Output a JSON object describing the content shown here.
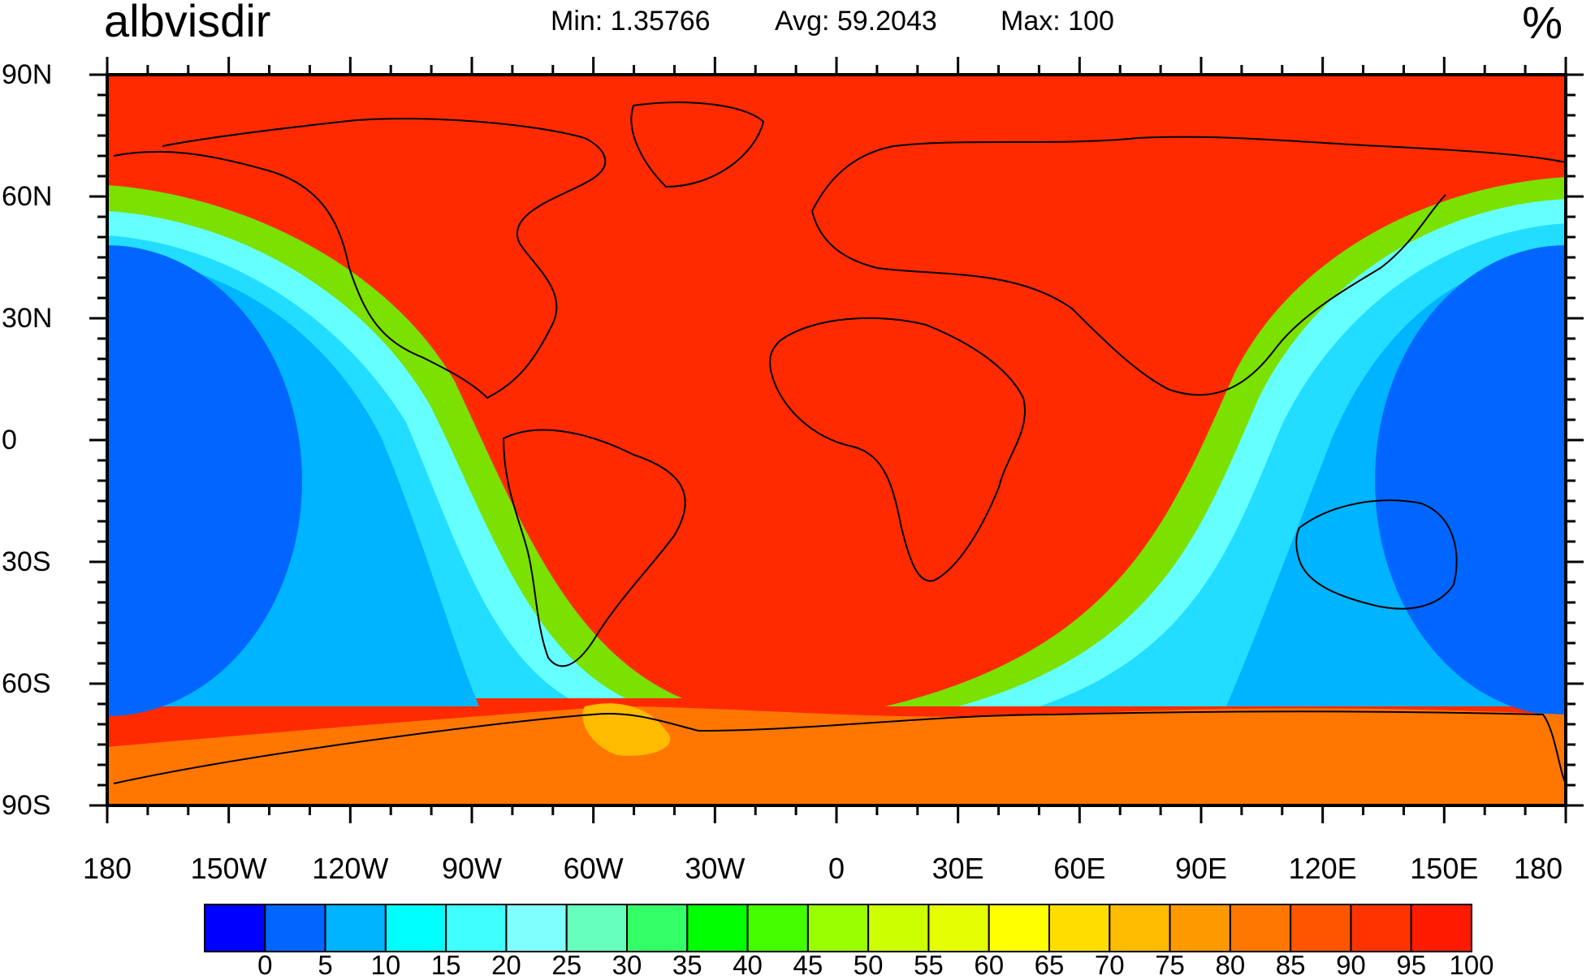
{
  "header": {
    "variable": "albvisdir",
    "min_text": "Min: 1.35766",
    "avg_text": "Avg: 59.2043",
    "max_text": "Max: 100",
    "units": "%"
  },
  "map": {
    "projection": "cylindrical-equidistant",
    "lon_range": [
      -180,
      180
    ],
    "lat_range": [
      -90,
      90
    ],
    "lat_ticks": [
      {
        "value": 90,
        "label": "90N"
      },
      {
        "value": 60,
        "label": "60N"
      },
      {
        "value": 30,
        "label": "30N"
      },
      {
        "value": 0,
        "label": "0"
      },
      {
        "value": -30,
        "label": "30S"
      },
      {
        "value": -60,
        "label": "60S"
      },
      {
        "value": -90,
        "label": "90S"
      }
    ],
    "lon_ticks": [
      {
        "value": -180,
        "label": "180"
      },
      {
        "value": -150,
        "label": "150W"
      },
      {
        "value": -120,
        "label": "120W"
      },
      {
        "value": -90,
        "label": "90W"
      },
      {
        "value": -60,
        "label": "60W"
      },
      {
        "value": -30,
        "label": "30W"
      },
      {
        "value": 0,
        "label": "0"
      },
      {
        "value": 30,
        "label": "30E"
      },
      {
        "value": 60,
        "label": "60E"
      },
      {
        "value": 90,
        "label": "90E"
      },
      {
        "value": 120,
        "label": "120E"
      },
      {
        "value": 150,
        "label": "150E"
      },
      {
        "value": 180,
        "label": "180"
      }
    ],
    "coastline_color": "#000000"
  },
  "colorbar": {
    "levels": [
      "0",
      "5",
      "10",
      "15",
      "20",
      "25",
      "30",
      "35",
      "40",
      "45",
      "50",
      "55",
      "60",
      "65",
      "70",
      "75",
      "80",
      "85",
      "90",
      "95",
      "100"
    ],
    "colors": [
      "#0000ff",
      "#0066ff",
      "#00b4ff",
      "#00ffff",
      "#40ffff",
      "#80ffff",
      "#66ffbb",
      "#33ff66",
      "#00ff00",
      "#44ff00",
      "#99ff00",
      "#ccff00",
      "#e6ff00",
      "#ffff00",
      "#ffdd00",
      "#ffbb00",
      "#ff9900",
      "#ff7700",
      "#ff5500",
      "#ff3300",
      "#ff1a00"
    ]
  }
}
